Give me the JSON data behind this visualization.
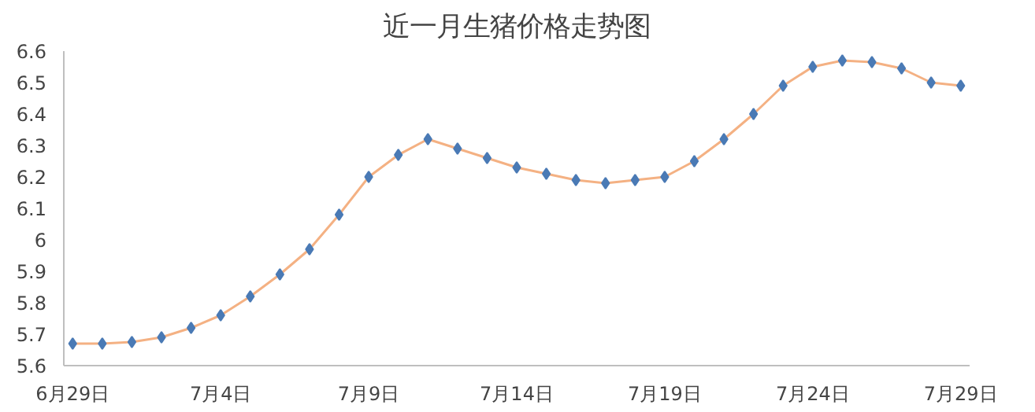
{
  "chart_data": {
    "type": "line",
    "title": "近一月生猪价格走势图",
    "categories": [
      "6月29日",
      null,
      null,
      null,
      null,
      "7月4日",
      null,
      null,
      null,
      null,
      "7月9日",
      null,
      null,
      null,
      null,
      "7月14日",
      null,
      null,
      null,
      null,
      "7月19日",
      null,
      null,
      null,
      null,
      "7月24日",
      null,
      null,
      null,
      null,
      "7月29日"
    ],
    "series": [
      {
        "color": "#f4b183",
        "values": [
          5.67,
          5.67,
          5.675,
          5.69,
          5.72,
          5.76,
          5.82,
          5.89,
          5.97,
          6.08,
          6.2,
          6.27,
          6.32,
          6.29,
          6.26,
          6.23,
          6.21,
          6.19,
          6.18,
          6.19,
          6.2,
          6.25,
          6.32,
          6.4,
          6.49,
          6.55,
          6.57,
          6.565,
          6.545,
          6.5,
          6.49
        ]
      }
    ],
    "ylim": [
      5.6,
      6.6
    ],
    "yticks": [
      5.6,
      5.7,
      5.8,
      5.9,
      6,
      6.1,
      6.2,
      6.3,
      6.4,
      6.5,
      6.6
    ],
    "marker": "diamond",
    "line_style": "solid",
    "grid": false
  }
}
